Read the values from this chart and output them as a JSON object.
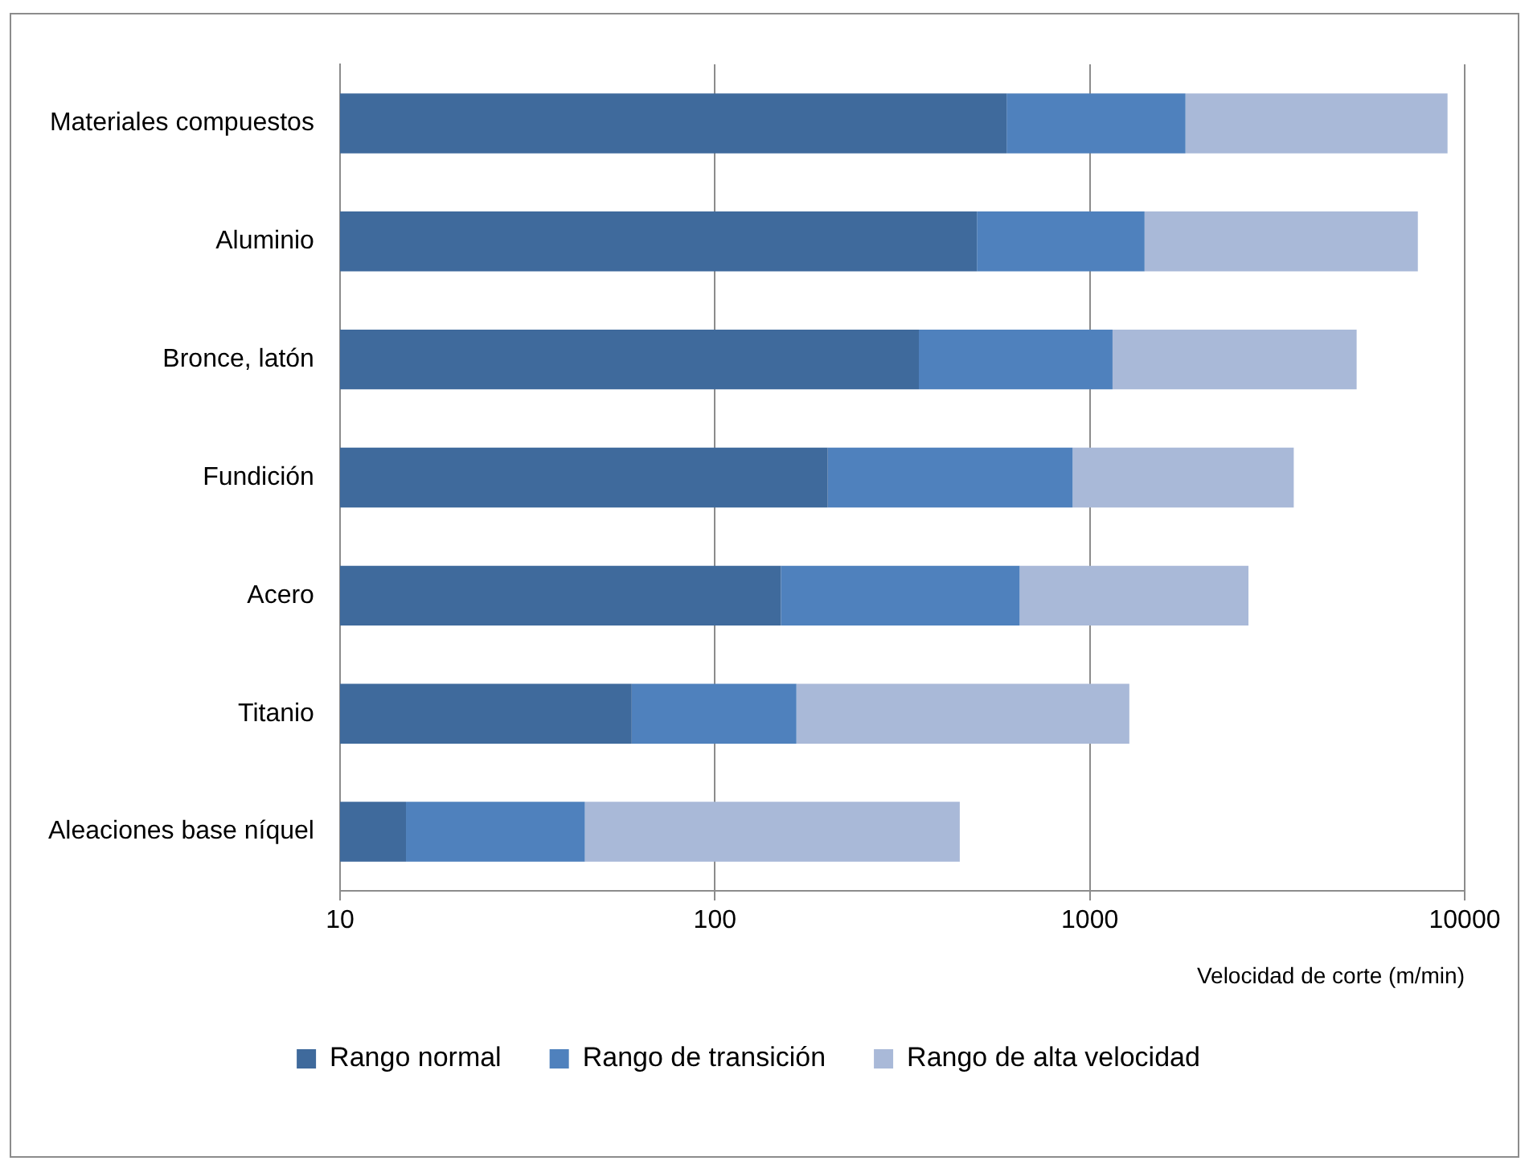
{
  "chart_data": {
    "type": "bar",
    "orientation": "horizontal",
    "stacked": true,
    "log": "x",
    "xlabel": "Velocidad de corte (m/min)",
    "categories": [
      "Materiales compuestos",
      "Aluminio",
      "Bronce, latón",
      "Fundición",
      "Acero",
      "Titanio",
      "Aleaciones base níquel"
    ],
    "series": [
      {
        "name": "Rango normal",
        "color": "#3f6a9c",
        "values": [
          600,
          500,
          350,
          200,
          150,
          60,
          15
        ]
      },
      {
        "name": "Rango de transición",
        "color": "#4f81bd",
        "values": [
          1200,
          900,
          800,
          700,
          500,
          105,
          30
        ]
      },
      {
        "name": "Rango de alta velocidad",
        "color": "#a9b9d8",
        "values": [
          7200,
          6100,
          4000,
          2600,
          2000,
          1110,
          405
        ]
      }
    ],
    "xlim": [
      10,
      10000
    ],
    "xticks": [
      10,
      100,
      1000,
      10000
    ],
    "grid": "x",
    "legend": "bottom"
  }
}
